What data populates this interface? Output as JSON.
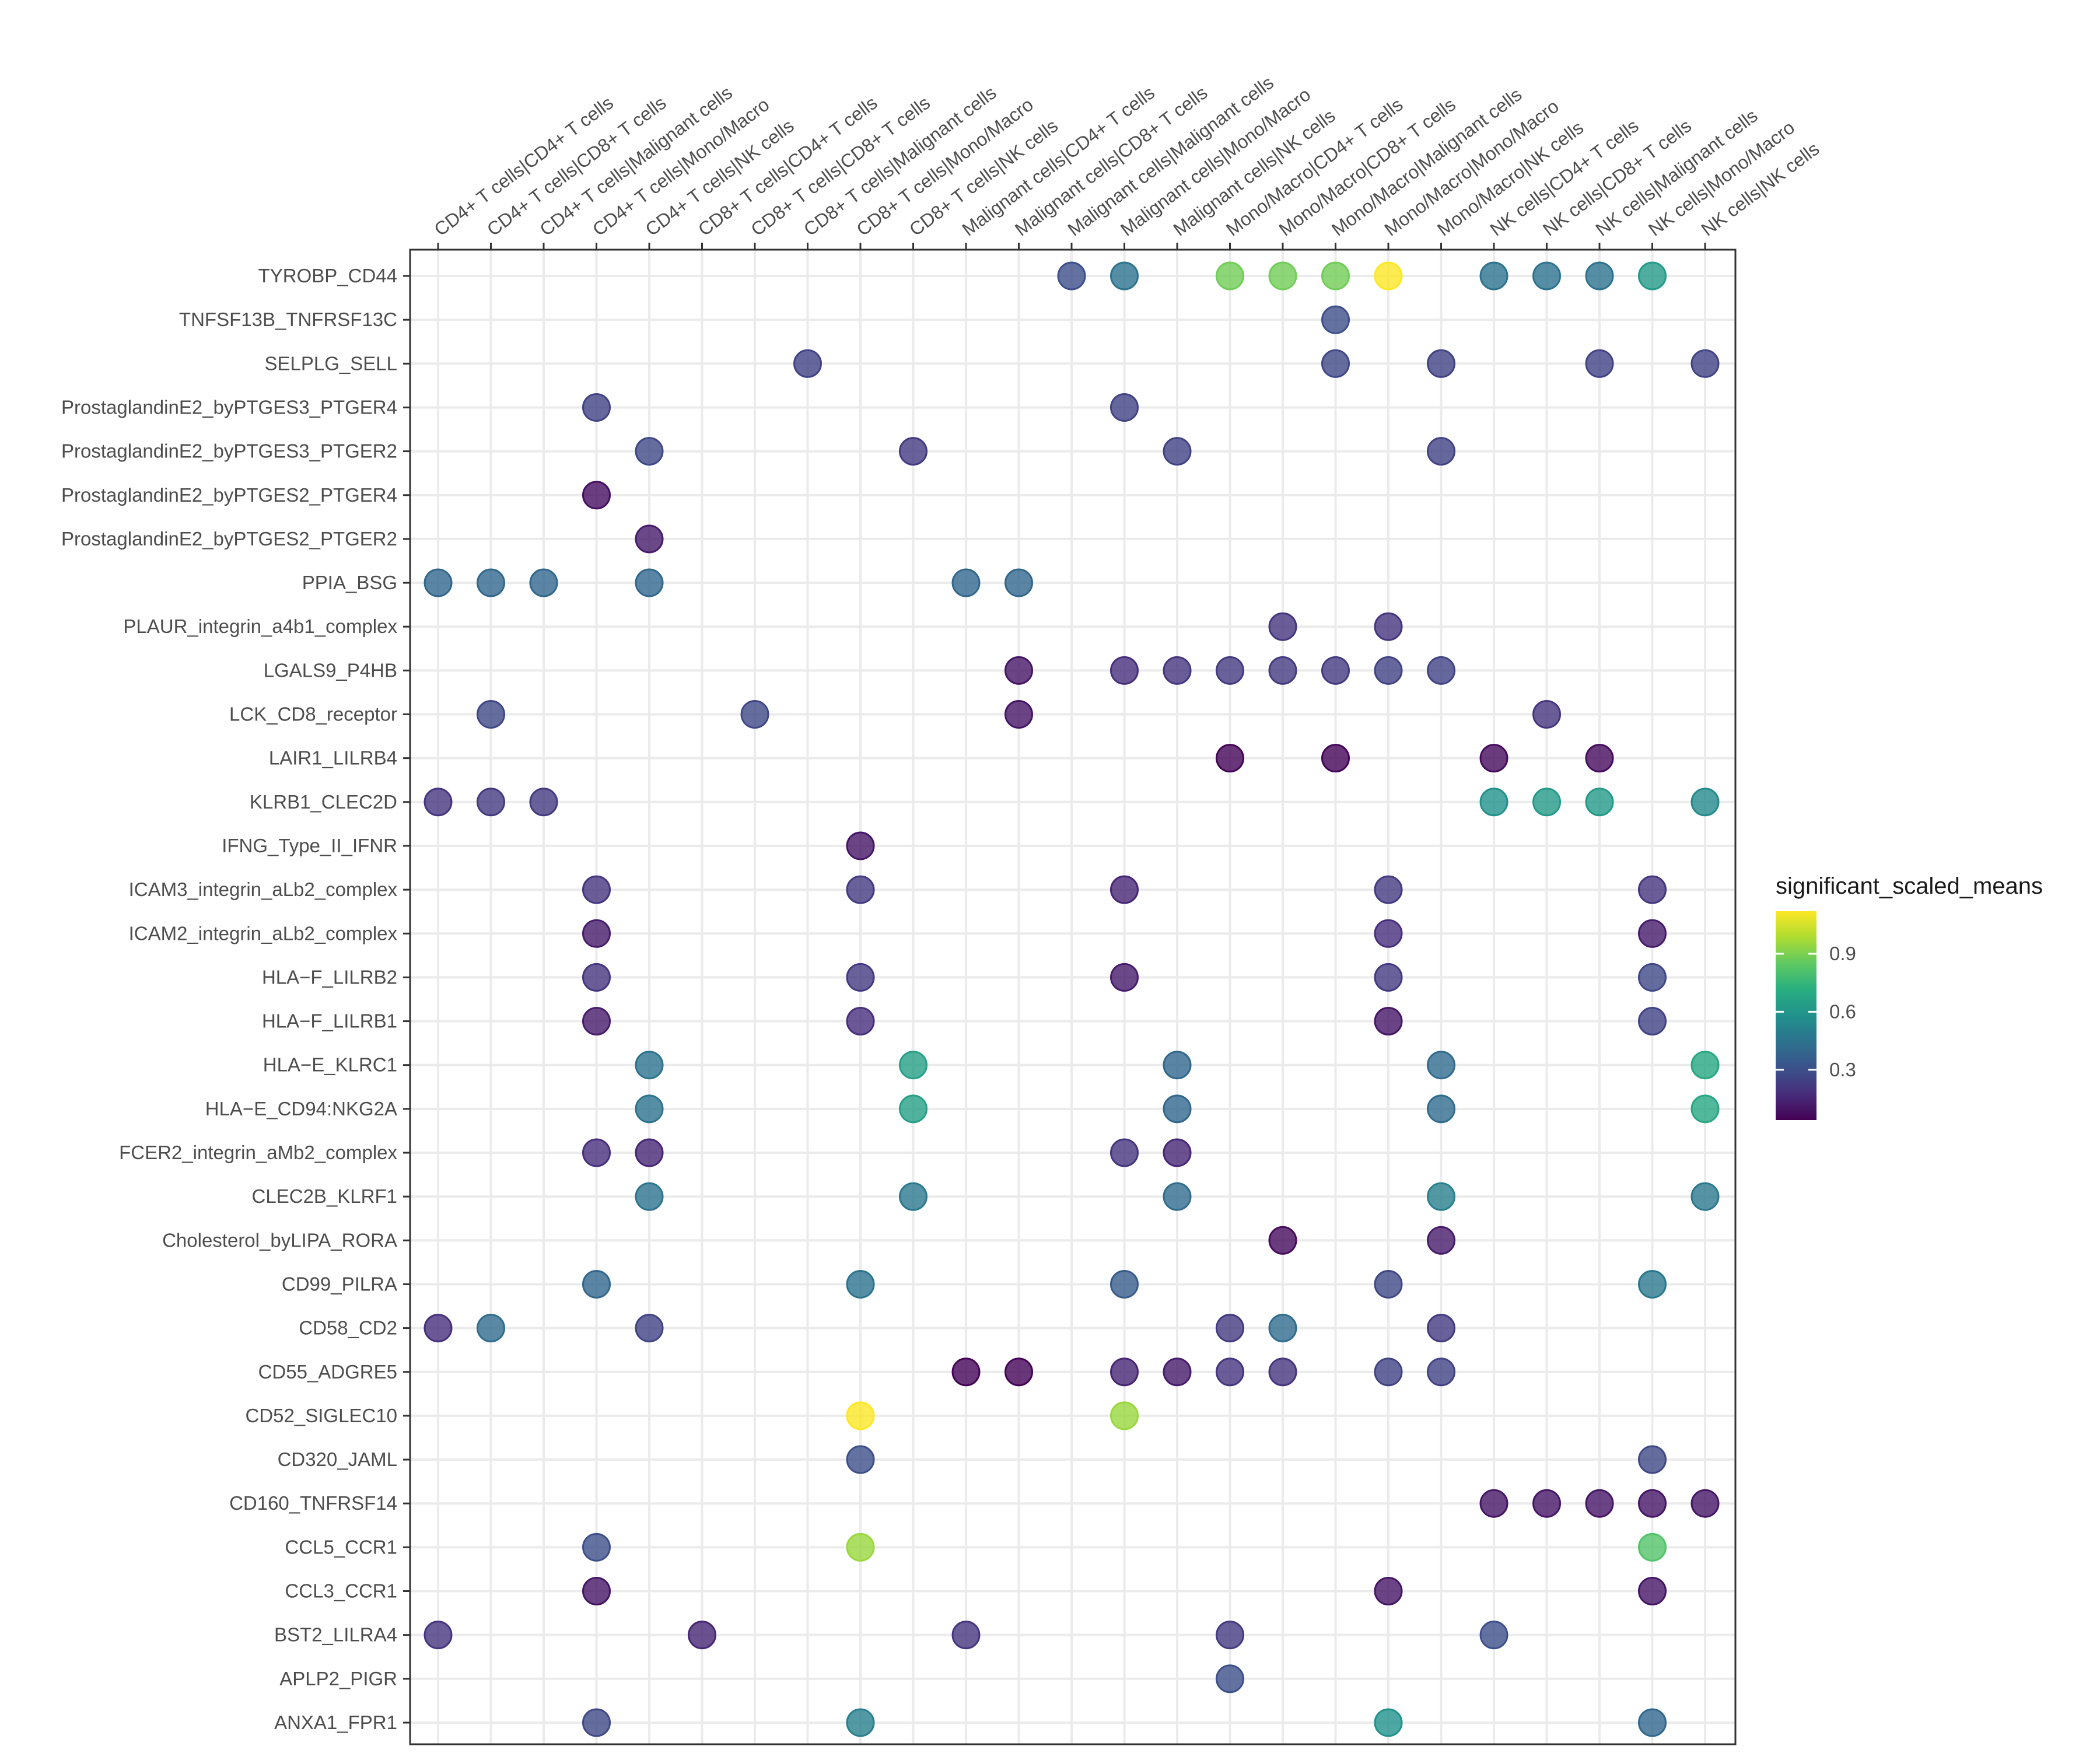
{
  "chart_data": {
    "type": "dot",
    "title": "",
    "xlabel": "",
    "ylabel": "",
    "grid": true,
    "legend": {
      "title": "significant_scaled_means",
      "placement": "right",
      "ticks": [
        0.3,
        0.6,
        0.9
      ],
      "range": [
        0.04,
        1.12
      ],
      "colormap": "viridis"
    },
    "x_categories": [
      "CD4+ T cells|CD4+ T cells",
      "CD4+ T cells|CD8+ T cells",
      "CD4+ T cells|Malignant cells",
      "CD4+ T cells|Mono/Macro",
      "CD4+ T cells|NK cells",
      "CD8+ T cells|CD4+ T cells",
      "CD8+ T cells|CD8+ T cells",
      "CD8+ T cells|Malignant cells",
      "CD8+ T cells|Mono/Macro",
      "CD8+ T cells|NK cells",
      "Malignant cells|CD4+ T cells",
      "Malignant cells|CD8+ T cells",
      "Malignant cells|Malignant cells",
      "Malignant cells|Mono/Macro",
      "Malignant cells|NK cells",
      "Mono/Macro|CD4+ T cells",
      "Mono/Macro|CD8+ T cells",
      "Mono/Macro|Malignant cells",
      "Mono/Macro|Mono/Macro",
      "Mono/Macro|NK cells",
      "NK cells|CD4+ T cells",
      "NK cells|CD8+ T cells",
      "NK cells|Malignant cells",
      "NK cells|Mono/Macro",
      "NK cells|NK cells"
    ],
    "y_categories": [
      "TYROBP_CD44",
      "TNFSF13B_TNFRSF13C",
      "SELPLG_SELL",
      "ProstaglandinE2_byPTGES3_PTGER4",
      "ProstaglandinE2_byPTGES3_PTGER2",
      "ProstaglandinE2_byPTGES2_PTGER4",
      "ProstaglandinE2_byPTGES2_PTGER2",
      "PPIA_BSG",
      "PLAUR_integrin_a4b1_complex",
      "LGALS9_P4HB",
      "LCK_CD8_receptor",
      "LAIR1_LILRB4",
      "KLRB1_CLEC2D",
      "IFNG_Type_II_IFNR",
      "ICAM3_integrin_aLb2_complex",
      "ICAM2_integrin_aLb2_complex",
      "HLA−F_LILRB2",
      "HLA−F_LILRB1",
      "HLA−E_KLRC1",
      "HLA−E_CD94:NKG2A",
      "FCER2_integrin_aMb2_complex",
      "CLEC2B_KLRF1",
      "Cholesterol_byLIPA_RORA",
      "CD99_PILRA",
      "CD58_CD2",
      "CD55_ADGRE5",
      "CD52_SIGLEC10",
      "CD320_JAML",
      "CD160_TNFRSF14",
      "CCL5_CCR1",
      "CCL3_CCR1",
      "BST2_LILRA4",
      "APLP2_PIGR",
      "ANXA1_FPR1"
    ],
    "points": [
      [
        12,
        0,
        0.3
      ],
      [
        13,
        0,
        0.45
      ],
      [
        15,
        0,
        0.88
      ],
      [
        16,
        0,
        0.88
      ],
      [
        17,
        0,
        0.88
      ],
      [
        18,
        0,
        1.12
      ],
      [
        20,
        0,
        0.45
      ],
      [
        21,
        0,
        0.45
      ],
      [
        22,
        0,
        0.45
      ],
      [
        23,
        0,
        0.62
      ],
      [
        17,
        1,
        0.3
      ],
      [
        7,
        2,
        0.25
      ],
      [
        17,
        2,
        0.27
      ],
      [
        19,
        2,
        0.25
      ],
      [
        22,
        2,
        0.25
      ],
      [
        24,
        2,
        0.25
      ],
      [
        3,
        3,
        0.25
      ],
      [
        13,
        3,
        0.25
      ],
      [
        4,
        4,
        0.27
      ],
      [
        9,
        4,
        0.22
      ],
      [
        14,
        4,
        0.25
      ],
      [
        19,
        4,
        0.25
      ],
      [
        3,
        5,
        0.08
      ],
      [
        4,
        6,
        0.12
      ],
      [
        0,
        7,
        0.4
      ],
      [
        1,
        7,
        0.4
      ],
      [
        2,
        7,
        0.4
      ],
      [
        4,
        7,
        0.4
      ],
      [
        10,
        7,
        0.4
      ],
      [
        11,
        7,
        0.4
      ],
      [
        16,
        8,
        0.2
      ],
      [
        18,
        8,
        0.2
      ],
      [
        11,
        9,
        0.1
      ],
      [
        13,
        9,
        0.18
      ],
      [
        14,
        9,
        0.2
      ],
      [
        15,
        9,
        0.22
      ],
      [
        16,
        9,
        0.22
      ],
      [
        17,
        9,
        0.22
      ],
      [
        18,
        9,
        0.25
      ],
      [
        19,
        9,
        0.25
      ],
      [
        1,
        10,
        0.27
      ],
      [
        6,
        10,
        0.27
      ],
      [
        11,
        10,
        0.1
      ],
      [
        21,
        10,
        0.2
      ],
      [
        15,
        11,
        0.05
      ],
      [
        17,
        11,
        0.05
      ],
      [
        20,
        11,
        0.07
      ],
      [
        22,
        11,
        0.07
      ],
      [
        0,
        12,
        0.2
      ],
      [
        1,
        12,
        0.22
      ],
      [
        2,
        12,
        0.22
      ],
      [
        20,
        12,
        0.58
      ],
      [
        21,
        12,
        0.62
      ],
      [
        22,
        12,
        0.62
      ],
      [
        24,
        12,
        0.55
      ],
      [
        8,
        13,
        0.1
      ],
      [
        3,
        14,
        0.2
      ],
      [
        8,
        14,
        0.22
      ],
      [
        13,
        14,
        0.15
      ],
      [
        18,
        14,
        0.22
      ],
      [
        23,
        14,
        0.2
      ],
      [
        3,
        15,
        0.12
      ],
      [
        18,
        15,
        0.18
      ],
      [
        23,
        15,
        0.12
      ],
      [
        3,
        16,
        0.2
      ],
      [
        8,
        16,
        0.22
      ],
      [
        13,
        16,
        0.12
      ],
      [
        18,
        16,
        0.22
      ],
      [
        23,
        16,
        0.27
      ],
      [
        3,
        17,
        0.12
      ],
      [
        8,
        17,
        0.18
      ],
      [
        18,
        17,
        0.1
      ],
      [
        23,
        17,
        0.25
      ],
      [
        4,
        18,
        0.45
      ],
      [
        9,
        18,
        0.65
      ],
      [
        14,
        18,
        0.4
      ],
      [
        19,
        18,
        0.42
      ],
      [
        24,
        18,
        0.68
      ],
      [
        4,
        19,
        0.45
      ],
      [
        9,
        19,
        0.65
      ],
      [
        14,
        19,
        0.4
      ],
      [
        19,
        19,
        0.42
      ],
      [
        24,
        19,
        0.68
      ],
      [
        3,
        20,
        0.18
      ],
      [
        4,
        20,
        0.15
      ],
      [
        13,
        20,
        0.2
      ],
      [
        14,
        20,
        0.15
      ],
      [
        4,
        21,
        0.45
      ],
      [
        9,
        21,
        0.47
      ],
      [
        14,
        21,
        0.42
      ],
      [
        19,
        21,
        0.5
      ],
      [
        24,
        21,
        0.47
      ],
      [
        16,
        22,
        0.07
      ],
      [
        19,
        22,
        0.12
      ],
      [
        3,
        23,
        0.4
      ],
      [
        8,
        23,
        0.45
      ],
      [
        13,
        23,
        0.35
      ],
      [
        18,
        23,
        0.27
      ],
      [
        23,
        23,
        0.47
      ],
      [
        0,
        24,
        0.18
      ],
      [
        1,
        24,
        0.42
      ],
      [
        4,
        24,
        0.25
      ],
      [
        15,
        24,
        0.22
      ],
      [
        16,
        24,
        0.42
      ],
      [
        19,
        24,
        0.22
      ],
      [
        10,
        25,
        0.05
      ],
      [
        11,
        25,
        0.05
      ],
      [
        13,
        25,
        0.15
      ],
      [
        14,
        25,
        0.12
      ],
      [
        15,
        25,
        0.2
      ],
      [
        16,
        25,
        0.2
      ],
      [
        18,
        25,
        0.25
      ],
      [
        19,
        25,
        0.25
      ],
      [
        8,
        26,
        1.12
      ],
      [
        13,
        26,
        0.95
      ],
      [
        8,
        27,
        0.3
      ],
      [
        23,
        27,
        0.27
      ],
      [
        20,
        28,
        0.1
      ],
      [
        21,
        28,
        0.1
      ],
      [
        22,
        28,
        0.1
      ],
      [
        23,
        28,
        0.1
      ],
      [
        24,
        28,
        0.1
      ],
      [
        3,
        29,
        0.3
      ],
      [
        8,
        29,
        0.95
      ],
      [
        23,
        29,
        0.82
      ],
      [
        3,
        30,
        0.1
      ],
      [
        18,
        30,
        0.1
      ],
      [
        23,
        30,
        0.1
      ],
      [
        0,
        31,
        0.2
      ],
      [
        5,
        31,
        0.15
      ],
      [
        10,
        31,
        0.2
      ],
      [
        15,
        31,
        0.22
      ],
      [
        20,
        31,
        0.3
      ],
      [
        15,
        32,
        0.3
      ],
      [
        3,
        33,
        0.27
      ],
      [
        8,
        33,
        0.5
      ],
      [
        18,
        33,
        0.58
      ],
      [
        23,
        33,
        0.4
      ]
    ]
  }
}
